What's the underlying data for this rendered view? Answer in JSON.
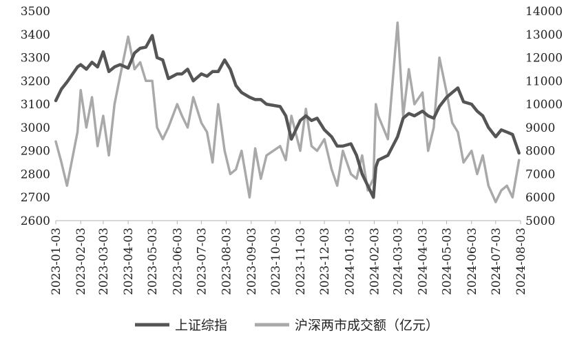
{
  "chart_data": {
    "type": "line",
    "colors": {
      "shanghai": "#555555",
      "volume": "#a9a9a9",
      "axis": "#b0b0b0"
    },
    "x_tick_labels": [
      "2023-01-03",
      "2023-02-03",
      "2023-03-03",
      "2023-04-03",
      "2023-05-03",
      "2023-06-03",
      "2023-07-03",
      "2023-08-03",
      "2023-09-03",
      "2023-10-03",
      "2023-11-03",
      "2023-12-03",
      "2024-01-03",
      "2024-02-03",
      "2024-03-03",
      "2024-04-03",
      "2024-05-03",
      "2024-06-03",
      "2024-07-03",
      "2024-08-03"
    ],
    "y_left": {
      "ticks": [
        2600,
        2700,
        2800,
        2900,
        3000,
        3100,
        3200,
        3300,
        3400,
        3500
      ],
      "range": [
        2600,
        3500
      ]
    },
    "y_right": {
      "ticks": [
        5000,
        6000,
        7000,
        8000,
        9000,
        10000,
        11000,
        12000,
        13000,
        14000
      ],
      "range": [
        5000,
        14000
      ]
    },
    "series": [
      {
        "name": "上证综指",
        "axis": "left",
        "x": [
          "2023-01-03",
          "2023-01-10",
          "2023-01-17",
          "2023-01-30",
          "2023-02-03",
          "2023-02-10",
          "2023-02-17",
          "2023-02-24",
          "2023-03-03",
          "2023-03-10",
          "2023-03-17",
          "2023-03-24",
          "2023-04-03",
          "2023-04-11",
          "2023-04-18",
          "2023-04-25",
          "2023-05-03",
          "2023-05-09",
          "2023-05-16",
          "2023-05-23",
          "2023-06-03",
          "2023-06-09",
          "2023-06-16",
          "2023-06-23",
          "2023-07-03",
          "2023-07-10",
          "2023-07-17",
          "2023-07-24",
          "2023-08-01",
          "2023-08-08",
          "2023-08-15",
          "2023-08-22",
          "2023-09-01",
          "2023-09-08",
          "2023-09-15",
          "2023-09-22",
          "2023-10-09",
          "2023-10-16",
          "2023-10-23",
          "2023-11-03",
          "2023-11-10",
          "2023-11-17",
          "2023-11-24",
          "2023-12-03",
          "2023-12-12",
          "2023-12-19",
          "2023-12-26",
          "2024-01-05",
          "2024-01-12",
          "2024-01-19",
          "2024-01-26",
          "2024-02-02",
          "2024-02-05",
          "2024-02-08",
          "2024-02-20",
          "2024-03-03",
          "2024-03-10",
          "2024-03-17",
          "2024-03-24",
          "2024-04-03",
          "2024-04-10",
          "2024-04-17",
          "2024-04-24",
          "2024-05-03",
          "2024-05-10",
          "2024-05-17",
          "2024-05-24",
          "2024-06-03",
          "2024-06-10",
          "2024-06-17",
          "2024-06-24",
          "2024-07-03",
          "2024-07-10",
          "2024-07-17",
          "2024-07-24",
          "2024-08-01"
        ],
        "values": [
          3115,
          3165,
          3195,
          3260,
          3270,
          3250,
          3280,
          3260,
          3325,
          3240,
          3260,
          3270,
          3255,
          3320,
          3340,
          3345,
          3395,
          3300,
          3290,
          3210,
          3230,
          3230,
          3250,
          3200,
          3230,
          3220,
          3240,
          3240,
          3290,
          3250,
          3180,
          3150,
          3130,
          3120,
          3120,
          3100,
          3090,
          3050,
          2950,
          3030,
          3050,
          3030,
          3040,
          2990,
          2960,
          2920,
          2920,
          2930,
          2880,
          2800,
          2750,
          2700,
          2830,
          2860,
          2880,
          2960,
          3040,
          3060,
          3050,
          3070,
          3050,
          3040,
          3090,
          3130,
          3150,
          3170,
          3110,
          3100,
          3070,
          3050,
          3000,
          2960,
          2990,
          2980,
          2970,
          2890
        ],
        "color": "#555555"
      },
      {
        "name": "沪深两市成交额（亿元）",
        "axis": "right",
        "x": [
          "2023-01-03",
          "2023-01-10",
          "2023-01-17",
          "2023-01-30",
          "2023-02-03",
          "2023-02-10",
          "2023-02-17",
          "2023-02-24",
          "2023-03-03",
          "2023-03-10",
          "2023-03-17",
          "2023-03-24",
          "2023-04-03",
          "2023-04-11",
          "2023-04-18",
          "2023-04-25",
          "2023-05-03",
          "2023-05-09",
          "2023-05-16",
          "2023-05-23",
          "2023-06-03",
          "2023-06-09",
          "2023-06-16",
          "2023-06-23",
          "2023-07-03",
          "2023-07-10",
          "2023-07-17",
          "2023-07-24",
          "2023-08-01",
          "2023-08-08",
          "2023-08-15",
          "2023-08-22",
          "2023-09-01",
          "2023-09-08",
          "2023-09-15",
          "2023-09-22",
          "2023-10-09",
          "2023-10-16",
          "2023-10-23",
          "2023-11-03",
          "2023-11-10",
          "2023-11-17",
          "2023-11-24",
          "2023-12-03",
          "2023-12-12",
          "2023-12-19",
          "2023-12-26",
          "2024-01-05",
          "2024-01-12",
          "2024-01-19",
          "2024-01-26",
          "2024-02-02",
          "2024-02-05",
          "2024-02-08",
          "2024-02-20",
          "2024-03-03",
          "2024-03-10",
          "2024-03-17",
          "2024-03-24",
          "2024-04-03",
          "2024-04-10",
          "2024-04-17",
          "2024-04-24",
          "2024-05-03",
          "2024-05-10",
          "2024-05-17",
          "2024-05-24",
          "2024-06-03",
          "2024-06-10",
          "2024-06-17",
          "2024-06-24",
          "2024-07-03",
          "2024-07-10",
          "2024-07-17",
          "2024-07-24",
          "2024-08-01"
        ],
        "values": [
          8400,
          7500,
          6500,
          8800,
          10600,
          9000,
          10300,
          8200,
          9500,
          7800,
          10000,
          11200,
          12900,
          11500,
          11800,
          11000,
          11000,
          9000,
          8500,
          9000,
          10000,
          9500,
          9000,
          10300,
          9200,
          8800,
          7500,
          10000,
          8000,
          7000,
          7200,
          8000,
          6000,
          8100,
          6800,
          7800,
          8200,
          7600,
          9500,
          8000,
          9800,
          8200,
          8000,
          8500,
          7200,
          6500,
          8000,
          7000,
          6800,
          7800,
          6300,
          6800,
          10000,
          9500,
          8500,
          13500,
          9500,
          11500,
          10000,
          10500,
          8000,
          9000,
          12000,
          10500,
          9200,
          8800,
          7500,
          8000,
          7000,
          7800,
          6500,
          5800,
          6300,
          6500,
          6000,
          7600
        ],
        "color": "#a9a9a9"
      }
    ]
  },
  "legend": {
    "shanghai_label": "上证综指",
    "volume_label": "沪深两市成交额（亿元）"
  }
}
